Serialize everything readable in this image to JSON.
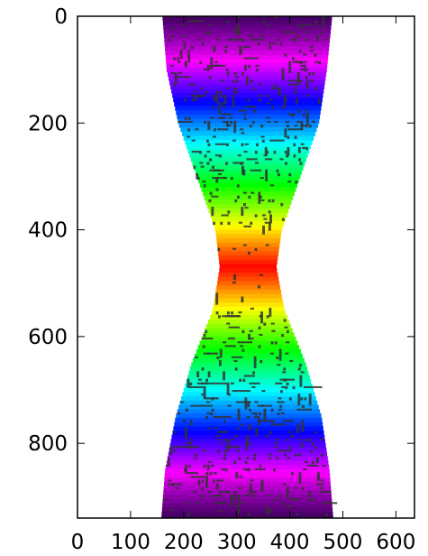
{
  "chart_data": {
    "type": "heatmap",
    "title": "",
    "xlabel": "",
    "ylabel": "",
    "xlim": [
      0,
      635
    ],
    "ylim": [
      940,
      0
    ],
    "x_ticks": [
      0,
      100,
      200,
      300,
      400,
      500,
      600
    ],
    "x_tick_labels": [
      "0",
      "100",
      "200",
      "300",
      "400",
      "500",
      "600"
    ],
    "y_ticks": [
      0,
      200,
      400,
      600,
      800
    ],
    "y_tick_labels": [
      "0",
      "200",
      "400",
      "600",
      "800"
    ],
    "grid": false,
    "colormap": "gist_rainbow",
    "shape": {
      "description_free": true,
      "rows": [
        {
          "y": 0,
          "x_left": 160,
          "x_right": 480
        },
        {
          "y": 100,
          "x_left": 168,
          "x_right": 470
        },
        {
          "y": 200,
          "x_left": 190,
          "x_right": 455
        },
        {
          "y": 300,
          "x_left": 225,
          "x_right": 420
        },
        {
          "y": 400,
          "x_left": 260,
          "x_right": 385
        },
        {
          "y": 470,
          "x_left": 268,
          "x_right": 375
        },
        {
          "y": 550,
          "x_left": 255,
          "x_right": 390
        },
        {
          "y": 650,
          "x_left": 215,
          "x_right": 430
        },
        {
          "y": 750,
          "x_left": 185,
          "x_right": 460
        },
        {
          "y": 850,
          "x_left": 165,
          "x_right": 475
        },
        {
          "y": 940,
          "x_left": 158,
          "x_right": 482
        }
      ]
    },
    "colors": {
      "background": "#ffffff",
      "axes_frame": "#000000",
      "speckle": "#333333"
    }
  }
}
